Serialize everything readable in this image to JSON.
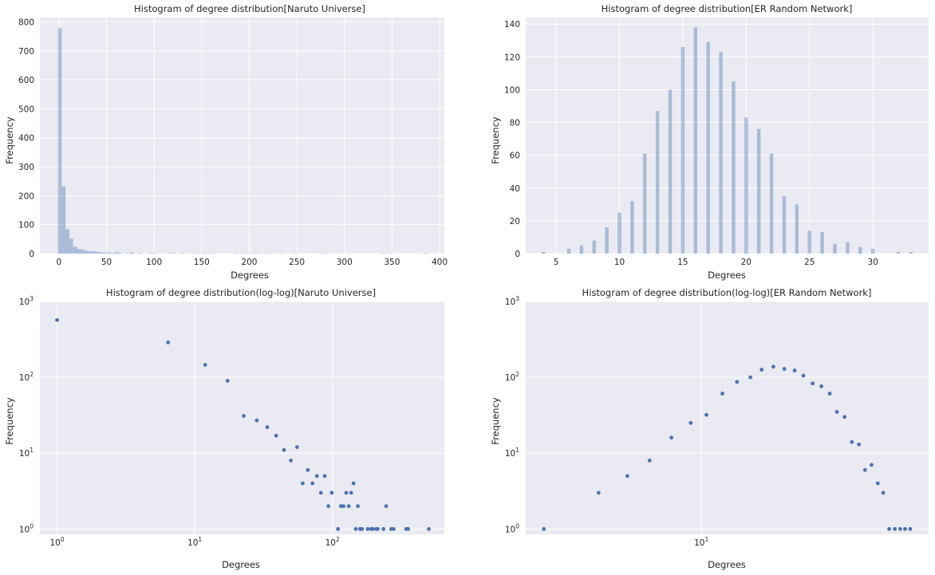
{
  "colors": {
    "panel_bg": "#eaeaf2",
    "grid": "#ffffff",
    "bar": "#4c72b0",
    "point": "#4c72b0",
    "text": "#262626"
  },
  "chart_data": [
    {
      "type": "bar",
      "title": "Histogram of degree distribution[Naruto Universe]",
      "xlabel": "Degrees",
      "ylabel": "Frequency",
      "xlim": [
        -20,
        405
      ],
      "ylim": [
        0,
        815
      ],
      "grid": true,
      "xticks": [
        0,
        50,
        100,
        150,
        200,
        250,
        300,
        350,
        400
      ],
      "yticks": [
        0,
        100,
        200,
        300,
        400,
        500,
        600,
        700,
        800
      ],
      "bin_width": 3.9,
      "x": [
        1,
        5,
        9,
        13,
        17,
        21,
        25,
        29,
        33,
        37,
        41,
        45,
        49,
        53,
        57,
        61,
        65,
        73,
        77,
        85,
        97,
        101,
        117,
        121,
        129,
        141,
        145,
        153,
        157,
        161,
        185,
        193,
        197,
        205,
        209,
        217,
        221,
        233,
        249,
        277,
        281,
        341,
        349,
        385
      ],
      "values": [
        778,
        232,
        84,
        52,
        24,
        16,
        14,
        10,
        8,
        8,
        6,
        4,
        4,
        3,
        2,
        5,
        2,
        2,
        4,
        2,
        2,
        2,
        2,
        1,
        2,
        1,
        1,
        1,
        1,
        1,
        1,
        1,
        1,
        1,
        1,
        1,
        1,
        1,
        1,
        1,
        1,
        1,
        1,
        1
      ]
    },
    {
      "type": "bar",
      "title": "Histogram of degree distribution[ER Random Network]",
      "xlabel": "Degrees",
      "ylabel": "Frequency",
      "xlim": [
        2.6,
        34.4
      ],
      "ylim": [
        0,
        144
      ],
      "grid": true,
      "xticks": [
        5,
        10,
        15,
        20,
        25,
        30
      ],
      "yticks": [
        0,
        20,
        40,
        60,
        80,
        100,
        120,
        140
      ],
      "bin_width": 0.28,
      "x": [
        4,
        5,
        6,
        7,
        8,
        9,
        10,
        11,
        12,
        13,
        14,
        15,
        16,
        17,
        18,
        19,
        20,
        21,
        22,
        23,
        24,
        25,
        26,
        27,
        28,
        29,
        30,
        31,
        32,
        33
      ],
      "values": [
        1,
        0,
        3,
        5,
        8,
        16,
        25,
        32,
        61,
        87,
        100,
        126,
        138,
        129,
        123,
        105,
        83,
        76,
        61,
        35,
        30,
        14,
        13,
        6,
        7,
        4,
        3,
        0,
        1,
        1
      ]
    },
    {
      "type": "scatter",
      "title": "Histogram of degree distribution(log-log)[Naruto Universe]",
      "xlabel": "Degrees",
      "ylabel": "Frequency",
      "xscale": "log",
      "yscale": "log",
      "xlim": [
        0.75,
        650
      ],
      "ylim": [
        0.85,
        1000
      ],
      "grid": true,
      "xticks": [
        1,
        10,
        100
      ],
      "yticks": [
        1,
        10,
        100,
        1000
      ],
      "x": [
        1,
        6.4,
        11.9,
        17.3,
        22.7,
        28.2,
        33.6,
        39,
        44.5,
        49.9,
        55.3,
        60.8,
        66.2,
        71.6,
        77.1,
        82.5,
        87.9,
        93.4,
        98.8,
        109.7,
        115.1,
        120.5,
        126,
        131.4,
        136.8,
        142.3,
        147.7,
        153.1,
        158.6,
        164,
        180.3,
        191.2,
        196.6,
        207.5,
        212.9,
        234.6,
        245.5,
        267.2,
        278.1,
        343.2,
        354.1,
        500.7
      ],
      "y": [
        570,
        288,
        146,
        90,
        31,
        27,
        22,
        17,
        11,
        8,
        12,
        4,
        6,
        4,
        5,
        3,
        5,
        2,
        3,
        1,
        2,
        2,
        3,
        2,
        3,
        4,
        1,
        2,
        1,
        1,
        1,
        1,
        1,
        1,
        1,
        1,
        2,
        1,
        1,
        1,
        1,
        1
      ]
    },
    {
      "type": "scatter",
      "title": "Histogram of degree distribution(log-log)[ER Random Network]",
      "xlabel": "Degrees",
      "ylabel": "Frequency",
      "xscale": "log",
      "yscale": "log",
      "xlim": [
        3.6,
        37.5
      ],
      "ylim": [
        0.85,
        1000
      ],
      "grid": true,
      "xticks": [
        10
      ],
      "yticks": [
        1,
        10,
        100,
        1000
      ],
      "x": [
        4,
        5.5,
        6.5,
        7.4,
        8.4,
        9.4,
        10.3,
        11.3,
        12.3,
        13.3,
        14.2,
        15.2,
        16.2,
        17.2,
        18.1,
        19.1,
        20.1,
        21.1,
        22,
        23,
        24,
        25,
        25.9,
        26.9,
        27.9,
        28.8,
        29.8,
        30.8,
        31.8,
        32.7,
        33.7
      ],
      "y": [
        1,
        3,
        5,
        8,
        16,
        25,
        32,
        61,
        87,
        100,
        126,
        138,
        129,
        123,
        105,
        83,
        76,
        61,
        35,
        30,
        14,
        13,
        6,
        7,
        4,
        3,
        1,
        1,
        1,
        1,
        1
      ]
    }
  ]
}
